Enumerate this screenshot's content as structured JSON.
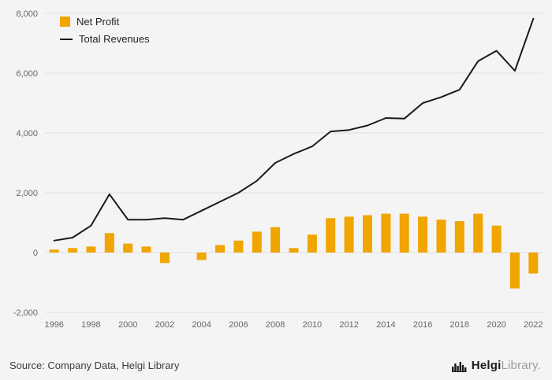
{
  "chart_data": {
    "type": "combo",
    "title": "",
    "categories": [
      1996,
      1997,
      1998,
      1999,
      2000,
      2001,
      2002,
      2003,
      2004,
      2005,
      2006,
      2007,
      2008,
      2009,
      2010,
      2011,
      2012,
      2013,
      2014,
      2015,
      2016,
      2017,
      2018,
      2019,
      2020,
      2021,
      2022
    ],
    "series": [
      {
        "name": "Net Profit",
        "type": "bar",
        "color": "#F0A500",
        "values": [
          100,
          150,
          200,
          650,
          300,
          200,
          -350,
          0,
          -250,
          250,
          400,
          700,
          850,
          150,
          600,
          1150,
          1200,
          1250,
          1300,
          1300,
          1200,
          1100,
          1050,
          1300,
          900,
          -1200,
          -700
        ]
      },
      {
        "name": "Total Revenues",
        "type": "line",
        "color": "#1A1A1A",
        "values": [
          400,
          500,
          900,
          1950,
          1100,
          1100,
          1150,
          1100,
          1400,
          1700,
          2000,
          2400,
          3000,
          3300,
          3550,
          4050,
          4100,
          4250,
          4500,
          4480,
          5000,
          5200,
          5450,
          6400,
          6750,
          6080,
          7820
        ]
      }
    ],
    "ylim": [
      -2000,
      8000
    ],
    "ytick_step": 2000,
    "xtick_labels": [
      "1996",
      "1998",
      "2000",
      "2002",
      "2004",
      "2006",
      "2008",
      "2010",
      "2012",
      "2014",
      "2016",
      "2018",
      "2020",
      "2022"
    ],
    "grid": true,
    "grid_color": "#E0E0E0",
    "axis_color": "#666666",
    "legend_position": "top-left"
  },
  "footer": {
    "source": "Source: Company Data, Helgi Library"
  },
  "logo": {
    "name": "Helgi",
    "suffix": "Library",
    "dot": "."
  }
}
